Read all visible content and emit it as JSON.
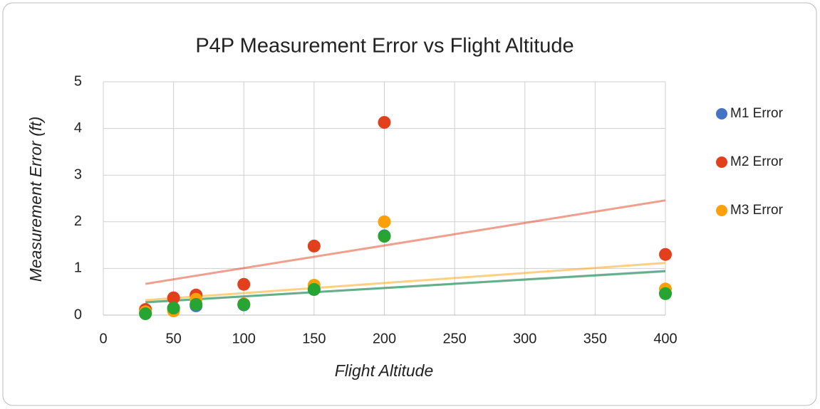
{
  "chart_data": {
    "type": "scatter",
    "title": "P4P Measurement Error vs Flight Altitude",
    "x_label": "Flight Altitude",
    "y_label": "Measurement Error (ft)",
    "x": [
      30,
      50,
      66,
      100,
      150,
      200,
      400
    ],
    "series": [
      {
        "name": "M1 Error",
        "color": "#4472c4",
        "values": [
          0.05,
          0.15,
          0.2,
          0.22,
          0.55,
          1.7,
          0.47
        ]
      },
      {
        "name": "M2 Error",
        "color": "#e2401c",
        "values": [
          0.12,
          0.37,
          0.43,
          0.66,
          1.48,
          4.13,
          1.3
        ]
      },
      {
        "name": "M3 Error",
        "color": "#ffa00a",
        "values": [
          0.07,
          0.09,
          0.34,
          0.24,
          0.64,
          2.0,
          0.56
        ]
      },
      {
        "color": "#26a532",
        "values": [
          0.03,
          0.15,
          0.23,
          0.23,
          0.55,
          1.69,
          0.46
        ]
      }
    ],
    "xlim": [
      0,
      400
    ],
    "xticks": [
      0,
      50,
      100,
      150,
      200,
      250,
      300,
      350,
      400
    ],
    "ylim": [
      0,
      5
    ],
    "yticks": [
      0,
      1,
      2,
      3,
      4,
      5
    ],
    "grid": true,
    "trendline": true,
    "legend": "right"
  }
}
